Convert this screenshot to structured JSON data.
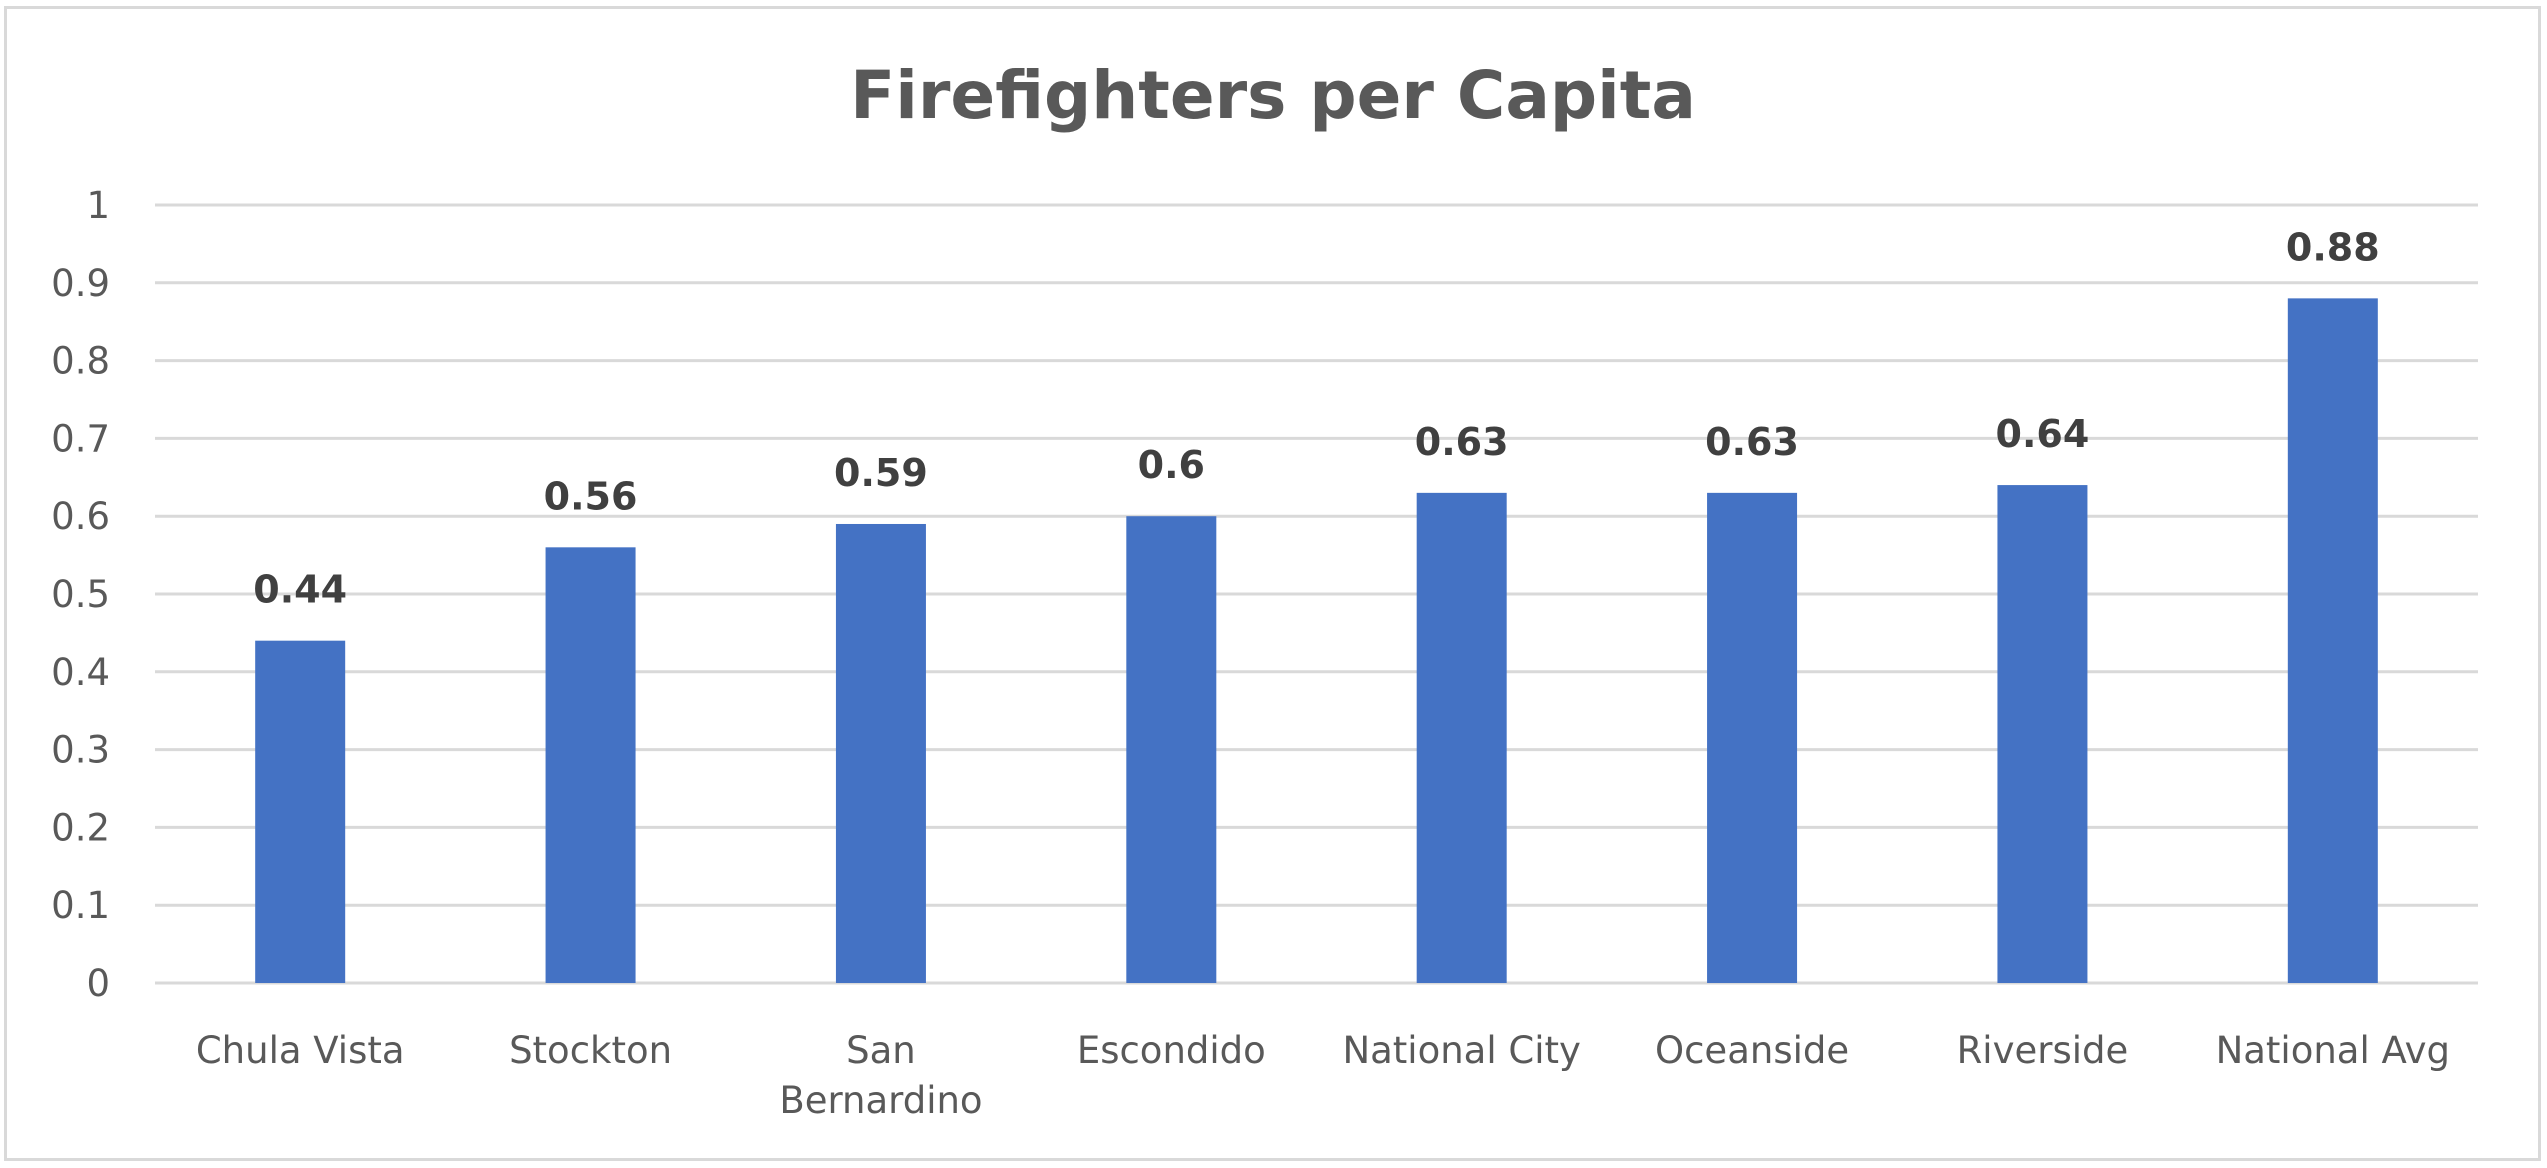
{
  "chart_data": {
    "type": "bar",
    "title": "Firefighters per Capita",
    "xlabel": "",
    "ylabel": "",
    "categories": [
      "Chula Vista",
      "Stockton",
      "San Bernardino",
      "Escondido",
      "National City",
      "Oceanside",
      "Riverside",
      "National Avg"
    ],
    "category_lines": [
      [
        "Chula Vista"
      ],
      [
        "Stockton"
      ],
      [
        "San",
        "Bernardino"
      ],
      [
        "Escondido"
      ],
      [
        "National City"
      ],
      [
        "Oceanside"
      ],
      [
        "Riverside"
      ],
      [
        "National Avg"
      ]
    ],
    "values": [
      0.44,
      0.56,
      0.59,
      0.6,
      0.63,
      0.63,
      0.64,
      0.88
    ],
    "data_labels": [
      "0.44",
      "0.56",
      "0.59",
      "0.6",
      "0.63",
      "0.63",
      "0.64",
      "0.88"
    ],
    "ylim": [
      0,
      1
    ],
    "yticks": [
      0,
      0.1,
      0.2,
      0.3,
      0.4,
      0.5,
      0.6,
      0.7,
      0.8,
      0.9,
      1
    ],
    "ytick_labels": [
      "0",
      "0.1",
      "0.2",
      "0.3",
      "0.4",
      "0.5",
      "0.6",
      "0.7",
      "0.8",
      "0.9",
      "1"
    ],
    "grid": true,
    "legend": "none",
    "colors": {
      "bar": "#4472C4",
      "grid": "#d9d9d9",
      "axis_text": "#595959",
      "label_text": "#404040",
      "frame": "#d9d9d9"
    }
  }
}
